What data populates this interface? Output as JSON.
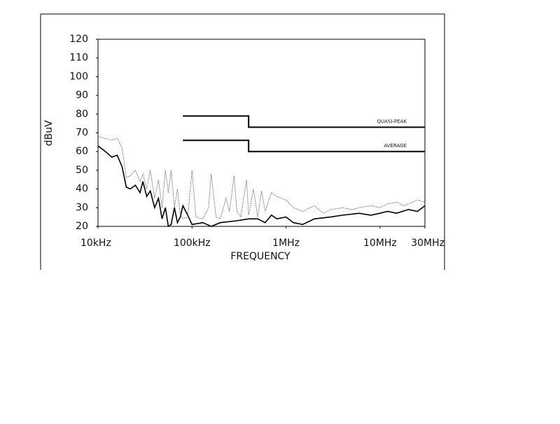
{
  "chart_data": {
    "type": "line",
    "xlabel": "FREQUENCY",
    "ylabel": "dBuV",
    "xscale": "log",
    "xlim": [
      10000,
      30000000
    ],
    "xticks": [
      {
        "value": 10000,
        "label": "10kHz"
      },
      {
        "value": 100000,
        "label": "100kHz"
      },
      {
        "value": 1000000,
        "label": "1MHz"
      },
      {
        "value": 10000000,
        "label": "10MHz"
      },
      {
        "value": 30000000,
        "label": "30MHz"
      }
    ],
    "ylim": [
      20,
      120
    ],
    "yticks": [
      20,
      30,
      40,
      50,
      60,
      70,
      80,
      90,
      100,
      110,
      120
    ],
    "series": [
      {
        "name": "QUASI-PEAK",
        "color": "#000000",
        "x": [
          80000,
          400000,
          400000,
          30000000
        ],
        "values": [
          79,
          79,
          73,
          73
        ]
      },
      {
        "name": "AVERAGE",
        "color": "#000000",
        "x": [
          80000,
          400000,
          400000,
          30000000
        ],
        "values": [
          66,
          66,
          60,
          60
        ]
      },
      {
        "color": "#777777",
        "x": [
          10000,
          12000,
          14000,
          16000,
          18000,
          20000,
          22000,
          25000,
          28000,
          30000,
          33000,
          36000,
          40000,
          44000,
          48000,
          52000,
          56000,
          60000,
          65000,
          70000,
          75000,
          80000,
          90000,
          100000,
          110000,
          130000,
          150000,
          160000,
          180000,
          200000,
          230000,
          250000,
          280000,
          300000,
          330000,
          380000,
          400000,
          450000,
          500000,
          550000,
          600000,
          700000,
          800000,
          900000,
          1000000,
          1200000,
          1500000,
          2000000,
          2500000,
          3000000,
          4000000,
          5000000,
          6000000,
          8000000,
          10000000,
          12000000,
          15000000,
          18000000,
          20000000,
          25000000,
          30000000
        ],
        "values": [
          68,
          67,
          66,
          67,
          62,
          46,
          47,
          50,
          44,
          48,
          40,
          50,
          35,
          45,
          30,
          50,
          38,
          50,
          30,
          40,
          26,
          24,
          25,
          50,
          25,
          24,
          30,
          48,
          25,
          24,
          35,
          28,
          47,
          28,
          25,
          45,
          26,
          40,
          25,
          39,
          28,
          38,
          36,
          35,
          34,
          30,
          28,
          31,
          27,
          29,
          30,
          29,
          30,
          31,
          30,
          32,
          33,
          31,
          32,
          34,
          33
        ]
      },
      {
        "color": "#000000",
        "x": [
          10000,
          12000,
          14000,
          16000,
          18000,
          20000,
          22000,
          25000,
          28000,
          30000,
          33000,
          36000,
          40000,
          44000,
          48000,
          52000,
          56000,
          60000,
          65000,
          70000,
          75000,
          80000,
          90000,
          100000,
          130000,
          160000,
          200000,
          300000,
          400000,
          500000,
          600000,
          700000,
          800000,
          1000000,
          1200000,
          1500000,
          2000000,
          3000000,
          4000000,
          6000000,
          8000000,
          10000000,
          12000000,
          15000000,
          20000000,
          25000000,
          30000000
        ],
        "values": [
          63,
          60,
          57,
          58,
          52,
          41,
          40,
          42,
          38,
          44,
          36,
          39,
          30,
          35,
          24,
          30,
          20,
          21,
          30,
          22,
          25,
          31,
          26,
          21,
          22,
          20,
          22,
          23,
          24,
          24,
          22,
          26,
          24,
          25,
          22,
          21,
          24,
          25,
          26,
          27,
          26,
          27,
          28,
          27,
          29,
          28,
          31
        ]
      }
    ]
  }
}
